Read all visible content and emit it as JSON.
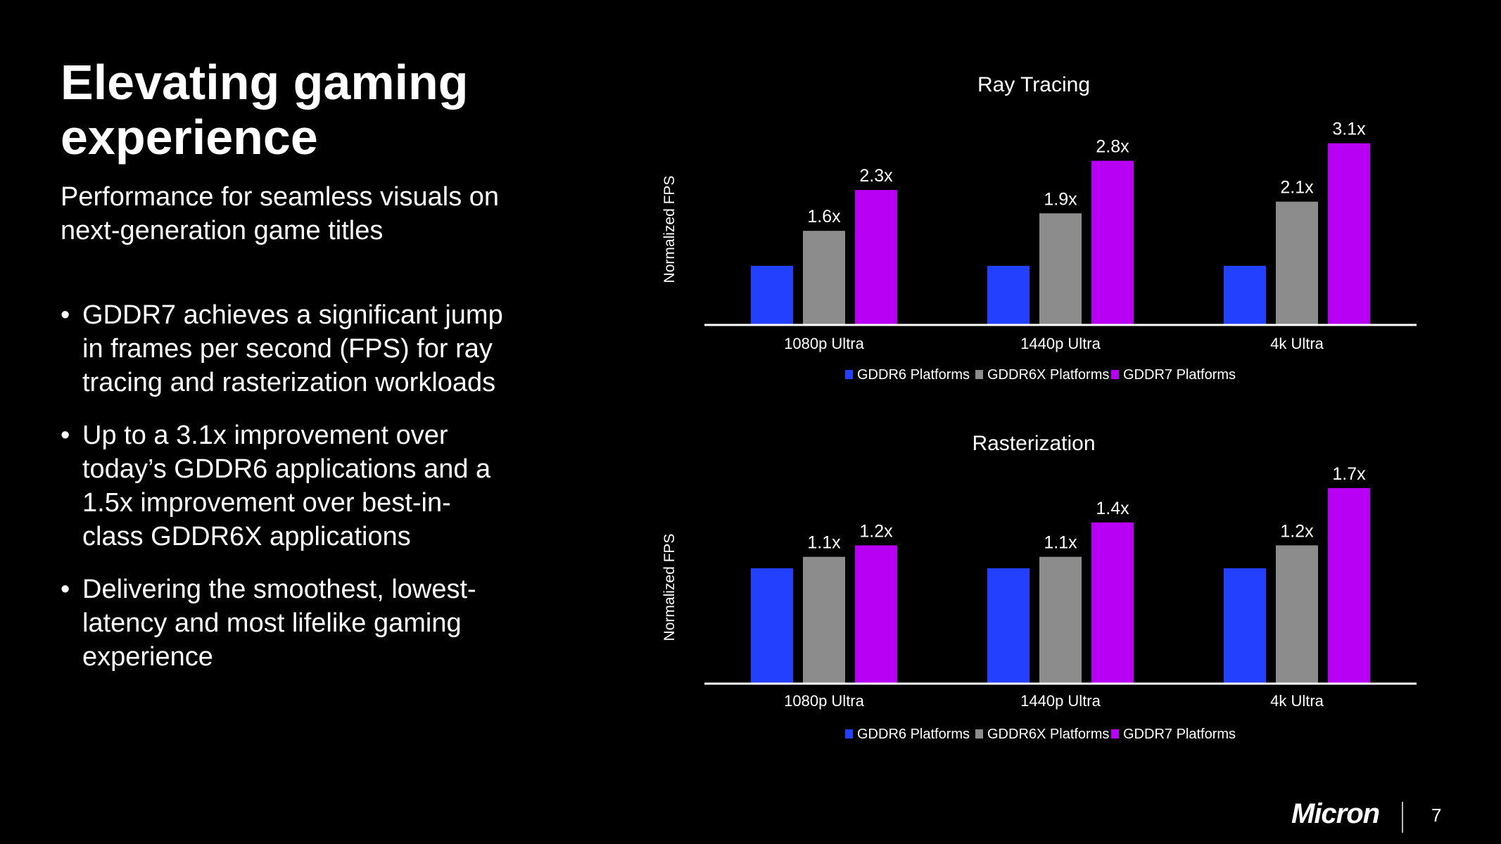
{
  "slide": {
    "title": "Elevating gaming experience",
    "subtitle": "Performance for seamless visuals on next-generation game titles",
    "bullets": [
      "GDDR7 achieves a significant jump in frames per second (FPS) for ray tracing and rasterization workloads",
      "Up to a 3.1x improvement over today’s GDDR6 applications and a 1.5x improvement over best-in-class GDDR6X applications",
      "Delivering the smoothest, lowest-latency and most lifelike gaming experience"
    ],
    "bullet_glyph": "•",
    "logo": "Micron",
    "page_number": "7"
  },
  "colors": {
    "GDDR6": "#2340ff",
    "GDDR6X": "#8c8c8c",
    "GDDR7": "#b800f5",
    "background": "#000000"
  },
  "chart_data": [
    {
      "type": "bar",
      "title": "Ray Tracing",
      "ylabel": "Normalized FPS",
      "categories": [
        "1080p Ultra",
        "1440p Ultra",
        "4k Ultra"
      ],
      "series": [
        {
          "name": "GDDR6 Platforms",
          "values": [
            1.0,
            1.0,
            1.0
          ],
          "labels": [
            "",
            "",
            ""
          ]
        },
        {
          "name": "GDDR6X Platforms",
          "values": [
            1.6,
            1.9,
            2.1
          ],
          "labels": [
            "1.6x",
            "1.9x",
            "2.1x"
          ]
        },
        {
          "name": "GDDR7 Platforms",
          "values": [
            2.3,
            2.8,
            3.1
          ],
          "labels": [
            "2.3x",
            "2.8x",
            "3.1x"
          ]
        }
      ],
      "ylim": [
        0,
        3.1
      ],
      "grid": false,
      "legend": "bottom"
    },
    {
      "type": "bar",
      "title": "Rasterization",
      "ylabel": "Normalized FPS",
      "categories": [
        "1080p Ultra",
        "1440p Ultra",
        "4k Ultra"
      ],
      "series": [
        {
          "name": "GDDR6 Platforms",
          "values": [
            1.0,
            1.0,
            1.0
          ],
          "labels": [
            "",
            "",
            ""
          ]
        },
        {
          "name": "GDDR6X Platforms",
          "values": [
            1.1,
            1.1,
            1.2
          ],
          "labels": [
            "1.1x",
            "1.1x",
            "1.2x"
          ]
        },
        {
          "name": "GDDR7 Platforms",
          "values": [
            1.2,
            1.4,
            1.7
          ],
          "labels": [
            "1.2x",
            "1.4x",
            "1.7x"
          ]
        }
      ],
      "ylim": [
        0,
        1.7
      ],
      "grid": false,
      "legend": "bottom"
    }
  ]
}
